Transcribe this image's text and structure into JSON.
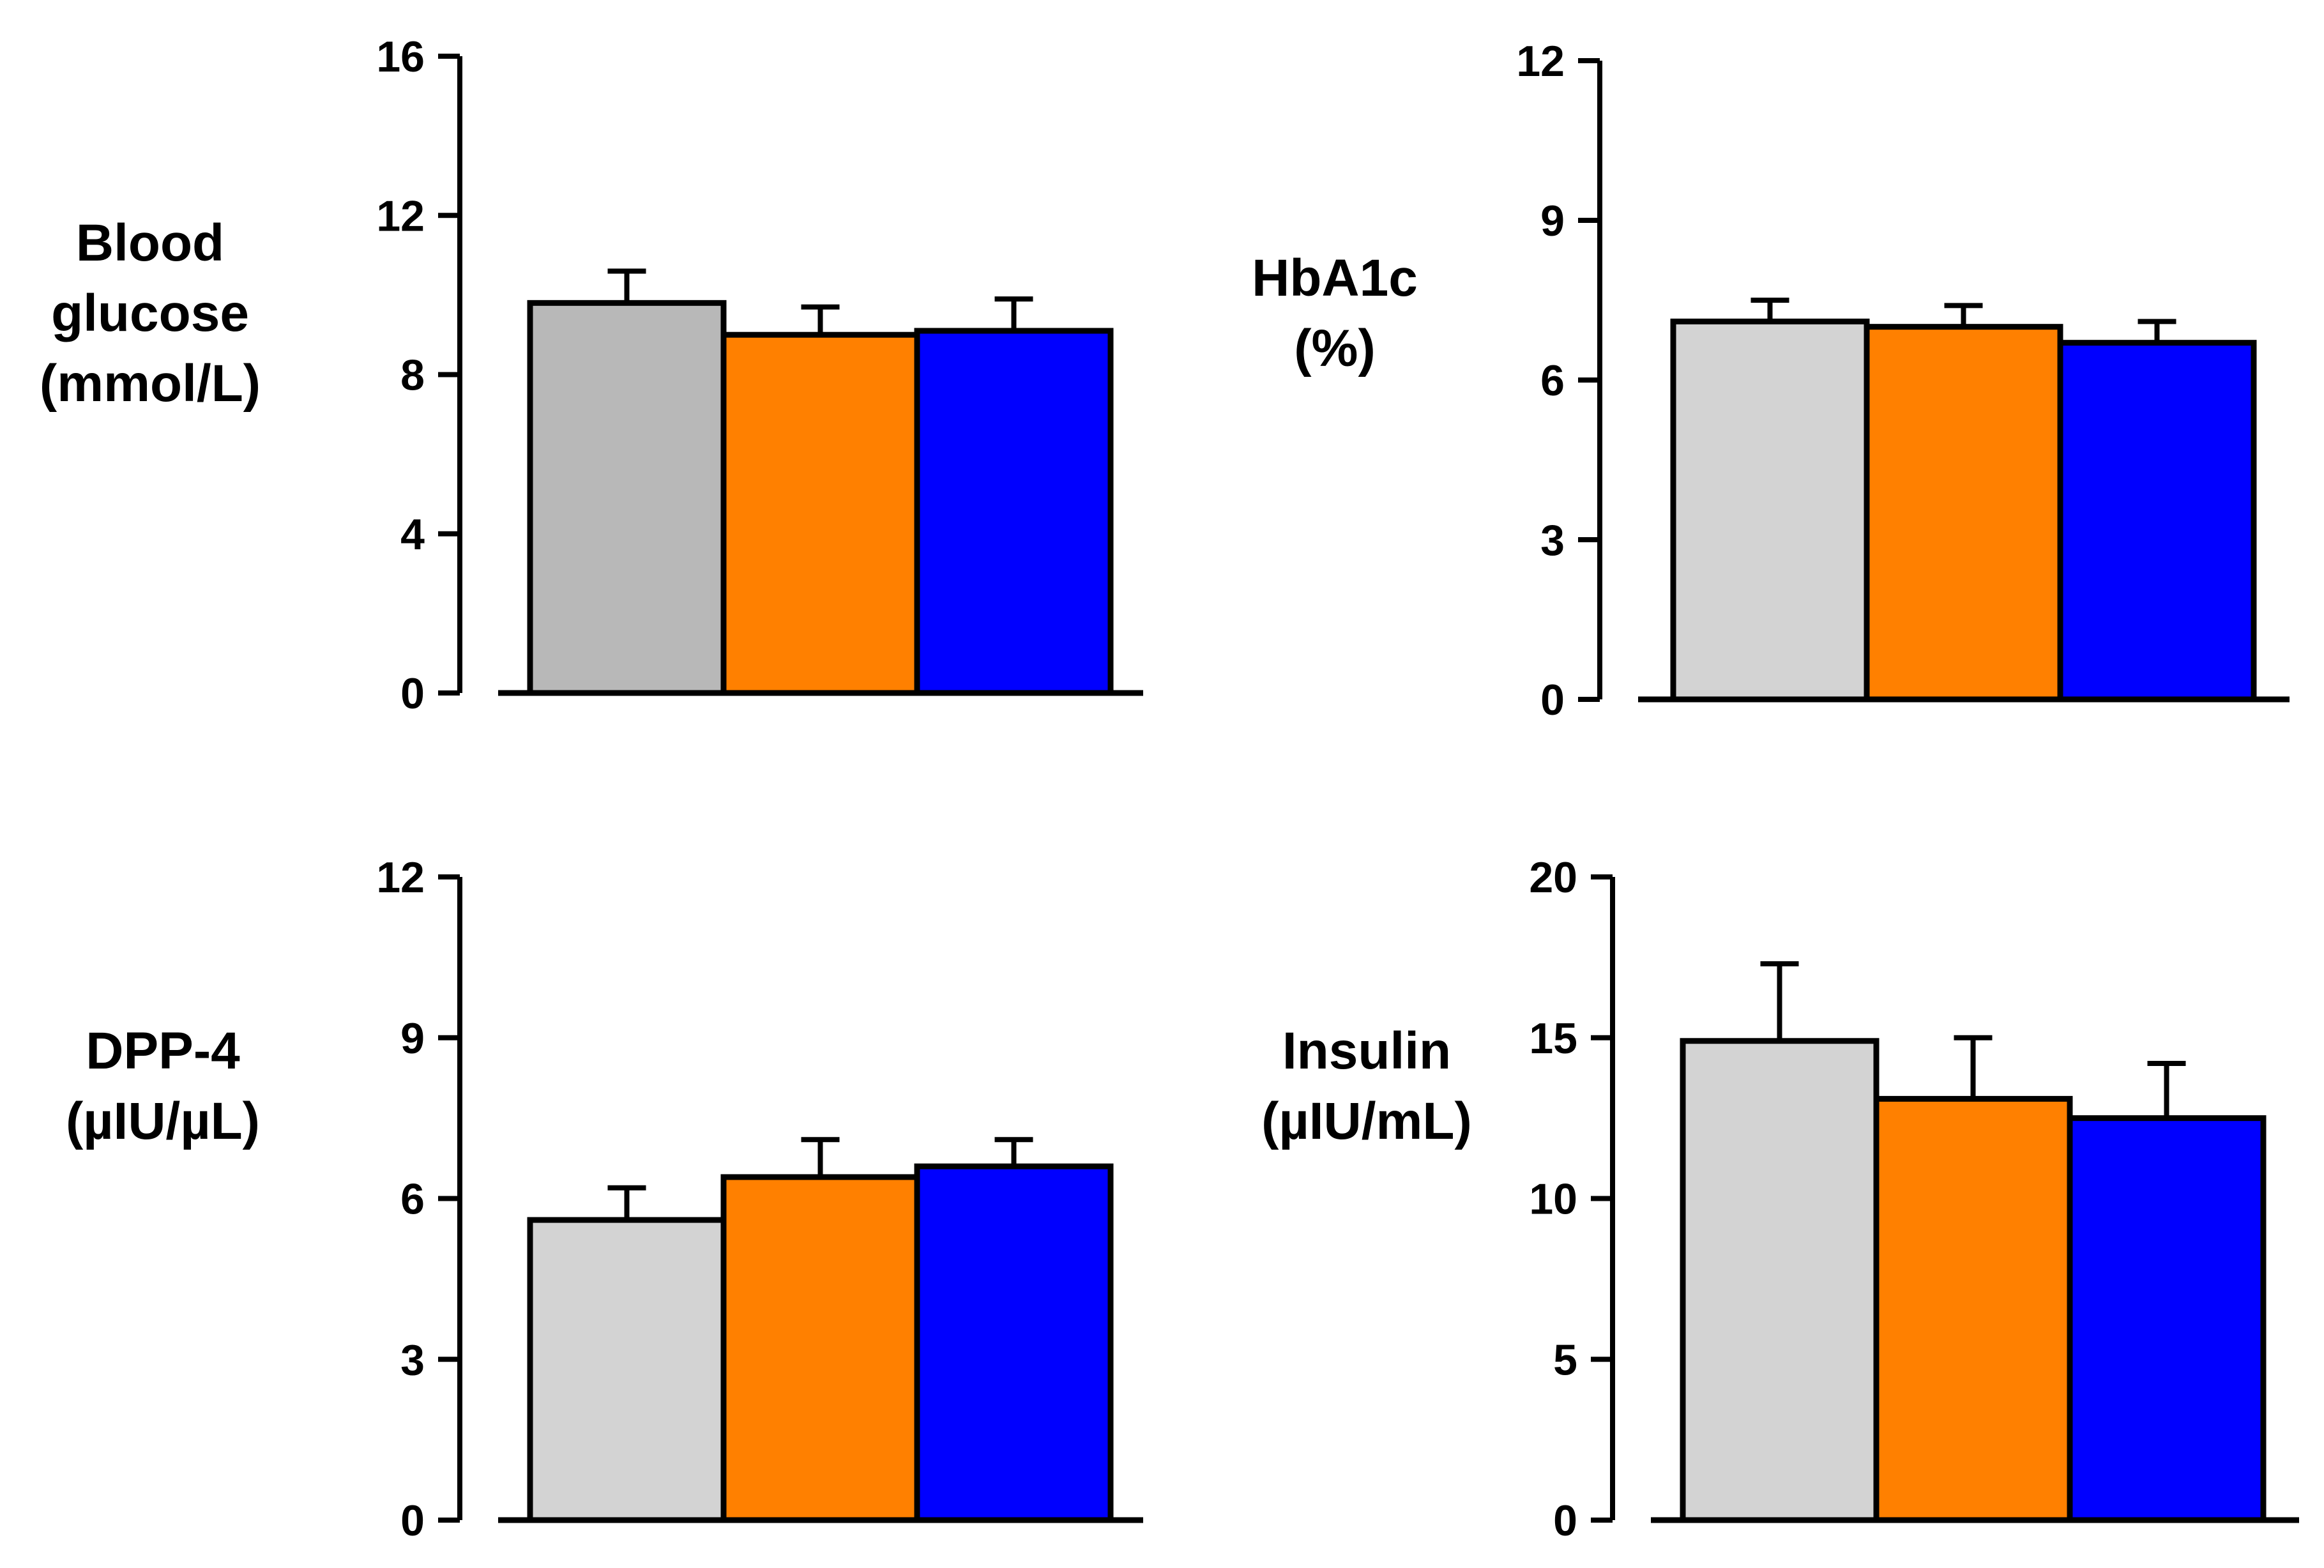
{
  "colors": {
    "group_1": "#b8b8b8",
    "group_1_light": "#d3d3d3",
    "group_2": "#ff8000",
    "group_3": "#0000ff",
    "axis": "#000000"
  },
  "chart_data": [
    {
      "type": "bar",
      "ylabel": [
        "Blood",
        "glucose",
        "(mmol/L)"
      ],
      "ylim": [
        0,
        16
      ],
      "yticks": [
        0,
        4,
        8,
        12,
        16
      ],
      "series_colors": [
        "#b8b8b8",
        "#ff8000",
        "#0000ff"
      ],
      "values": [
        9.8,
        9.0,
        9.1
      ],
      "errors": [
        0.8,
        0.7,
        0.8
      ],
      "grid": false
    },
    {
      "type": "bar",
      "ylabel": [
        "HbA1c",
        "(%)"
      ],
      "ylim": [
        0,
        12
      ],
      "yticks": [
        0,
        3,
        6,
        9,
        12
      ],
      "series_colors": [
        "#d3d3d3",
        "#ff8000",
        "#0000ff"
      ],
      "values": [
        7.1,
        7.0,
        6.7
      ],
      "errors": [
        0.4,
        0.4,
        0.4
      ],
      "grid": false
    },
    {
      "type": "bar",
      "ylabel": [
        "DPP-4",
        "(µIU/µL)"
      ],
      "ylim": [
        0,
        12
      ],
      "yticks": [
        0,
        3,
        6,
        9,
        12
      ],
      "series_colors": [
        "#d3d3d3",
        "#ff8000",
        "#0000ff"
      ],
      "values": [
        5.6,
        6.4,
        6.6
      ],
      "errors": [
        0.6,
        0.7,
        0.5
      ],
      "grid": false
    },
    {
      "type": "bar",
      "ylabel": [
        "Insulin",
        "(µIU/mL)"
      ],
      "ylim": [
        0,
        20
      ],
      "yticks": [
        0,
        5,
        10,
        15,
        20
      ],
      "series_colors": [
        "#d3d3d3",
        "#ff8000",
        "#0000ff"
      ],
      "values": [
        14.9,
        13.1,
        12.5
      ],
      "errors": [
        2.4,
        1.9,
        1.7
      ],
      "grid": false
    }
  ]
}
